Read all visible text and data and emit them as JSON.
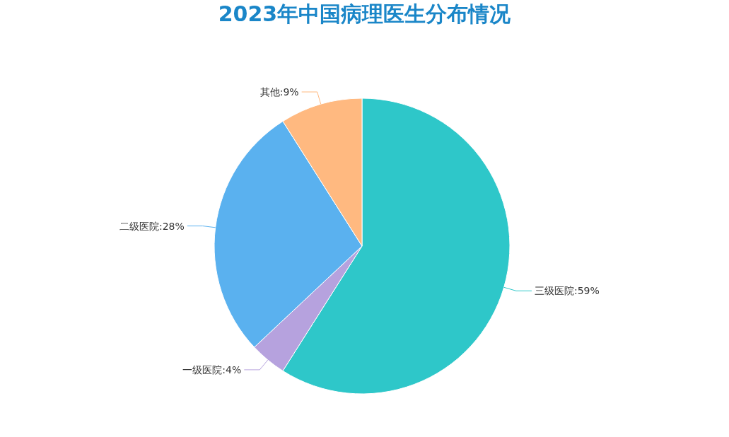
{
  "chart_data": {
    "type": "pie",
    "title": "2023年中国病理医生分布情况",
    "categories": [
      "三级医院",
      "一级医院",
      "二级医院",
      "其他"
    ],
    "values": [
      59,
      4,
      28,
      9
    ],
    "colors": [
      "#2ec7c9",
      "#b6a2de",
      "#5ab1ef",
      "#ffb980"
    ],
    "value_labels": [
      "59%",
      "4%",
      "28%",
      "9%"
    ]
  }
}
